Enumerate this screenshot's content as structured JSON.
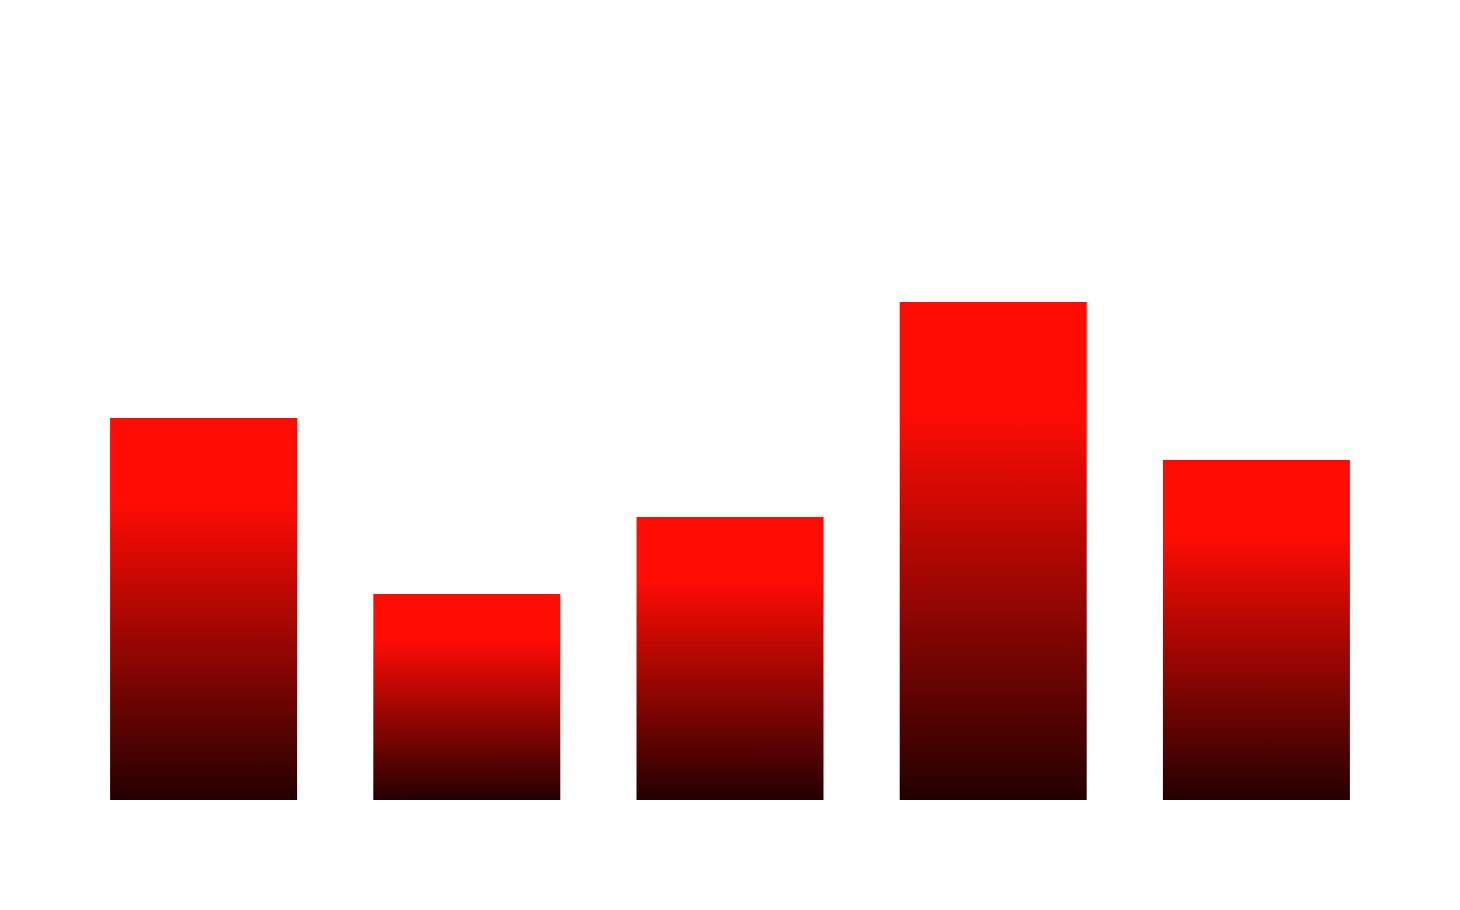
{
  "chart_data": {
    "type": "bar",
    "categories": [
      "",
      "",
      "",
      "",
      ""
    ],
    "values": [
      3.82,
      2.06,
      2.83,
      4.98,
      3.4
    ],
    "ylim": [
      0,
      8
    ],
    "grid": false,
    "axes_visible": false,
    "legend": "none",
    "colors": {
      "bar_top": "#ff0c04",
      "bar_bottom": "#240000",
      "background": "#ffffff"
    }
  }
}
